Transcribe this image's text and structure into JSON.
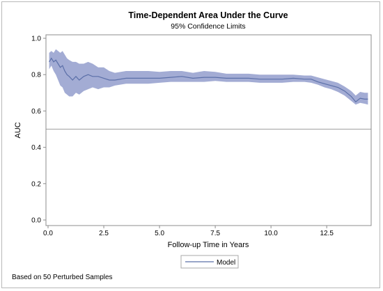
{
  "chart_data": {
    "type": "line",
    "title": "Time-Dependent Area Under the Curve",
    "subtitle": "95% Confidence Limits",
    "xlabel": "Follow-up Time in Years",
    "ylabel": "AUC",
    "xlim": [
      0,
      14.4
    ],
    "ylim": [
      0,
      1.0
    ],
    "xticks": [
      "0.0",
      "2.5",
      "5.0",
      "7.5",
      "10.0",
      "12.5"
    ],
    "xtick_values": [
      0,
      2.5,
      5,
      7.5,
      10,
      12.5
    ],
    "yticks": [
      "0.0",
      "0.2",
      "0.4",
      "0.6",
      "0.8",
      "1.0"
    ],
    "ytick_values": [
      0,
      0.2,
      0.4,
      0.6,
      0.8,
      1.0
    ],
    "reference_line": 0.5,
    "grid": false,
    "legend_position": "bottom-center",
    "footnote": "Based on 50 Perturbed Samples",
    "colors": {
      "line": "#5b6fa8",
      "band": "#a3acd4",
      "reference": "#a0a0a0"
    },
    "series": [
      {
        "name": "Model",
        "x": [
          0.05,
          0.15,
          0.25,
          0.35,
          0.45,
          0.55,
          0.65,
          0.75,
          0.85,
          0.95,
          1.1,
          1.25,
          1.4,
          1.6,
          1.8,
          2.0,
          2.25,
          2.5,
          2.75,
          3.0,
          3.5,
          4.0,
          4.5,
          5.0,
          5.5,
          6.0,
          6.5,
          7.0,
          7.5,
          8.0,
          8.5,
          9.0,
          9.5,
          10.0,
          10.5,
          11.0,
          11.5,
          11.8,
          12.1,
          12.4,
          12.7,
          13.0,
          13.3,
          13.6,
          13.8,
          14.0,
          14.2,
          14.35
        ],
        "y": [
          0.87,
          0.89,
          0.87,
          0.88,
          0.86,
          0.84,
          0.85,
          0.82,
          0.8,
          0.79,
          0.77,
          0.79,
          0.77,
          0.79,
          0.8,
          0.79,
          0.79,
          0.78,
          0.77,
          0.77,
          0.78,
          0.78,
          0.78,
          0.78,
          0.785,
          0.79,
          0.78,
          0.785,
          0.785,
          0.78,
          0.78,
          0.78,
          0.775,
          0.775,
          0.775,
          0.78,
          0.775,
          0.775,
          0.76,
          0.75,
          0.74,
          0.73,
          0.71,
          0.68,
          0.65,
          0.67,
          0.665,
          0.665
        ],
        "lower": [
          0.83,
          0.85,
          0.82,
          0.8,
          0.77,
          0.74,
          0.73,
          0.7,
          0.69,
          0.68,
          0.68,
          0.7,
          0.69,
          0.71,
          0.72,
          0.73,
          0.72,
          0.73,
          0.73,
          0.74,
          0.75,
          0.75,
          0.75,
          0.755,
          0.76,
          0.76,
          0.76,
          0.76,
          0.765,
          0.76,
          0.76,
          0.76,
          0.755,
          0.755,
          0.755,
          0.76,
          0.76,
          0.755,
          0.745,
          0.73,
          0.72,
          0.705,
          0.685,
          0.655,
          0.635,
          0.645,
          0.64,
          0.635
        ],
        "upper": [
          0.92,
          0.93,
          0.92,
          0.94,
          0.93,
          0.92,
          0.93,
          0.91,
          0.89,
          0.88,
          0.87,
          0.87,
          0.86,
          0.86,
          0.87,
          0.86,
          0.84,
          0.84,
          0.82,
          0.81,
          0.82,
          0.82,
          0.82,
          0.815,
          0.82,
          0.82,
          0.81,
          0.82,
          0.815,
          0.805,
          0.805,
          0.805,
          0.8,
          0.8,
          0.8,
          0.8,
          0.795,
          0.795,
          0.785,
          0.775,
          0.765,
          0.755,
          0.735,
          0.71,
          0.685,
          0.705,
          0.7,
          0.7
        ]
      }
    ]
  }
}
